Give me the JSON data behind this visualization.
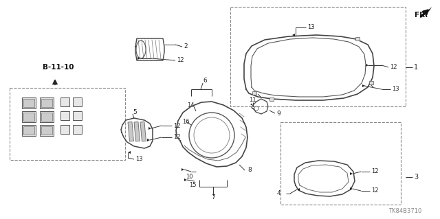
{
  "bg_color": "#ffffff",
  "line_color": "#333333",
  "diagram_code": "TK84B3710",
  "ref_label": "B-11-10",
  "fr_label": "FR.",
  "fig_width": 6.4,
  "fig_height": 3.19,
  "dpi": 100
}
